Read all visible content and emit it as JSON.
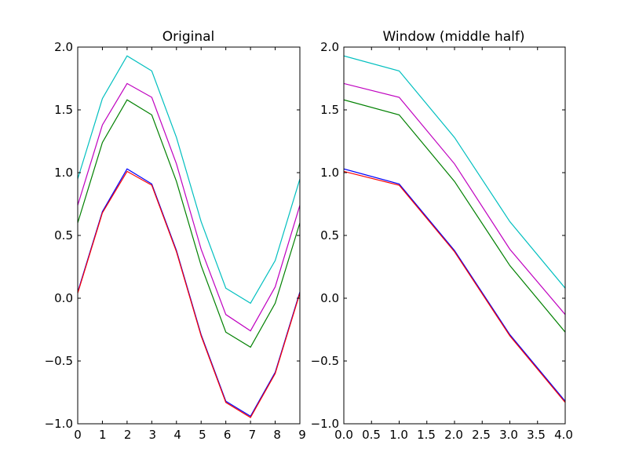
{
  "chart_data": [
    {
      "type": "line",
      "title": "Original",
      "xlabel": "",
      "ylabel": "",
      "xlim": [
        0,
        9
      ],
      "ylim": [
        -1.0,
        2.0
      ],
      "xticks": [
        "0",
        "1",
        "2",
        "3",
        "4",
        "5",
        "6",
        "7",
        "8",
        "9"
      ],
      "yticks": [
        "2.0",
        "1.5",
        "1.0",
        "0.5",
        "0.0",
        "−0.5",
        "−1.0"
      ],
      "x": [
        0,
        1,
        2,
        3,
        4,
        5,
        6,
        7,
        8,
        9
      ],
      "grid": false,
      "series": [
        {
          "color": "#0000ff",
          "values": [
            0.05,
            0.69,
            1.03,
            0.91,
            0.38,
            -0.29,
            -0.82,
            -0.94,
            -0.59,
            0.05
          ]
        },
        {
          "color": "#ff0000",
          "values": [
            0.04,
            0.68,
            1.01,
            0.9,
            0.37,
            -0.3,
            -0.83,
            -0.95,
            -0.6,
            0.04
          ]
        },
        {
          "color": "#008000",
          "values": [
            0.6,
            1.24,
            1.58,
            1.46,
            0.93,
            0.26,
            -0.27,
            -0.39,
            -0.04,
            0.6
          ]
        },
        {
          "color": "#bf00bf",
          "values": [
            0.74,
            1.38,
            1.71,
            1.6,
            1.07,
            0.39,
            -0.13,
            -0.26,
            0.09,
            0.74
          ]
        },
        {
          "color": "#00bfbf",
          "values": [
            0.95,
            1.59,
            1.93,
            1.81,
            1.28,
            0.61,
            0.08,
            -0.04,
            0.3,
            0.95
          ]
        }
      ]
    },
    {
      "type": "line",
      "title": "Window (middle half)",
      "xlabel": "",
      "ylabel": "",
      "xlim": [
        0,
        4
      ],
      "ylim": [
        -1.0,
        2.0
      ],
      "xticks": [
        "0.0",
        "0.5",
        "1.0",
        "1.5",
        "2.0",
        "2.5",
        "3.0",
        "3.5",
        "4.0"
      ],
      "yticks": [
        "2.0",
        "1.5",
        "1.0",
        "0.5",
        "0.0",
        "−0.5",
        "−1.0"
      ],
      "x": [
        0,
        1,
        2,
        3,
        4
      ],
      "grid": false,
      "series": [
        {
          "color": "#0000ff",
          "values": [
            1.03,
            0.91,
            0.38,
            -0.29,
            -0.82
          ]
        },
        {
          "color": "#ff0000",
          "values": [
            1.01,
            0.9,
            0.37,
            -0.3,
            -0.83
          ]
        },
        {
          "color": "#008000",
          "values": [
            1.58,
            1.46,
            0.93,
            0.26,
            -0.27
          ]
        },
        {
          "color": "#bf00bf",
          "values": [
            1.71,
            1.6,
            1.07,
            0.39,
            -0.13
          ]
        },
        {
          "color": "#00bfbf",
          "values": [
            1.93,
            1.81,
            1.28,
            0.61,
            0.08
          ]
        }
      ]
    }
  ]
}
